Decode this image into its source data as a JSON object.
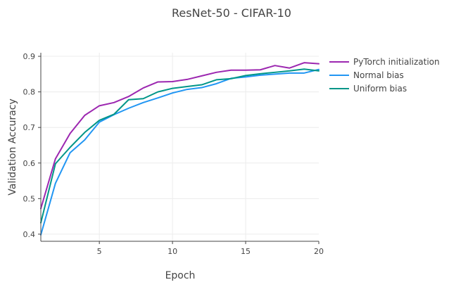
{
  "chart_data": {
    "type": "line",
    "title": "ResNet-50 - CIFAR-10",
    "xlabel": "Epoch",
    "ylabel": "Validation Accuracy",
    "xlim": [
      1,
      20
    ],
    "ylim": [
      0.38,
      0.91
    ],
    "xticks": [
      5,
      10,
      15,
      20
    ],
    "yticks": [
      0.4,
      0.5,
      0.6,
      0.7,
      0.8,
      0.9
    ],
    "grid": true,
    "legend_position": "top-right",
    "x": [
      1,
      2,
      3,
      4,
      5,
      6,
      7,
      8,
      9,
      10,
      11,
      12,
      13,
      14,
      15,
      16,
      17,
      18,
      19,
      20
    ],
    "series": [
      {
        "name": "PyTorch initialization",
        "color": "#9c27b0",
        "values": [
          0.472,
          0.612,
          0.683,
          0.734,
          0.761,
          0.77,
          0.787,
          0.811,
          0.828,
          0.829,
          0.835,
          0.845,
          0.855,
          0.861,
          0.861,
          0.862,
          0.874,
          0.867,
          0.882,
          0.879
        ]
      },
      {
        "name": "Normal bias",
        "color": "#2196f3",
        "values": [
          0.398,
          0.543,
          0.629,
          0.665,
          0.715,
          0.736,
          0.754,
          0.77,
          0.783,
          0.797,
          0.807,
          0.812,
          0.823,
          0.838,
          0.842,
          0.847,
          0.85,
          0.853,
          0.853,
          0.863
        ]
      },
      {
        "name": "Uniform bias",
        "color": "#009688",
        "values": [
          0.432,
          0.598,
          0.644,
          0.686,
          0.72,
          0.737,
          0.778,
          0.781,
          0.8,
          0.81,
          0.815,
          0.82,
          0.834,
          0.837,
          0.846,
          0.851,
          0.855,
          0.859,
          0.864,
          0.859
        ]
      }
    ]
  }
}
